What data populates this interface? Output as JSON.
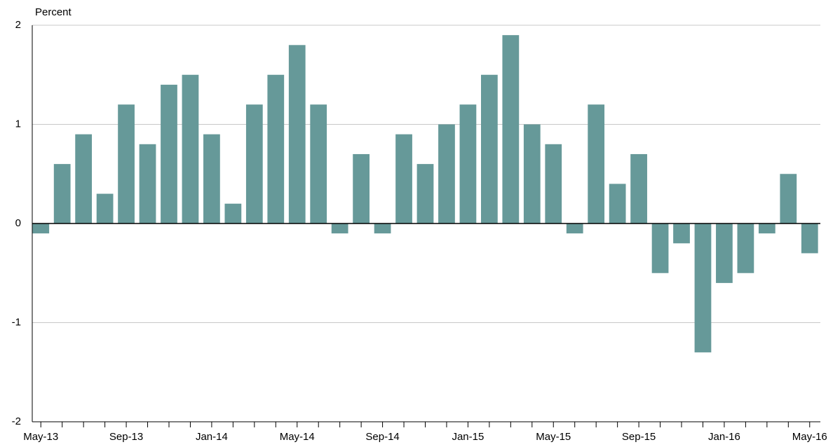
{
  "chart_data": {
    "type": "bar",
    "y_label": "Percent",
    "categories": [
      "May-13",
      null,
      null,
      null,
      "Sep-13",
      null,
      null,
      null,
      "Jan-14",
      null,
      null,
      null,
      "May-14",
      null,
      null,
      null,
      "Sep-14",
      null,
      null,
      null,
      "Jan-15",
      null,
      null,
      null,
      "May-15",
      null,
      null,
      null,
      "Sep-15",
      null,
      null,
      null,
      "Jan-16",
      null,
      null,
      null,
      "May-16"
    ],
    "values": [
      -0.1,
      0.6,
      0.9,
      0.3,
      1.2,
      0.8,
      1.4,
      1.5,
      0.9,
      0.2,
      1.2,
      1.5,
      1.8,
      1.2,
      -0.1,
      0.7,
      -0.1,
      0.9,
      0.6,
      1.0,
      1.2,
      1.5,
      1.9,
      1.0,
      0.8,
      -0.1,
      1.2,
      0.4,
      0.7,
      -0.5,
      -0.2,
      -1.3,
      -0.6,
      -0.5,
      -0.1,
      0.5,
      -0.3
    ],
    "color": "#669999",
    "ylim": [
      -2,
      2
    ],
    "yticks": [
      -2,
      -1,
      0,
      1,
      2
    ],
    "grid": true
  }
}
